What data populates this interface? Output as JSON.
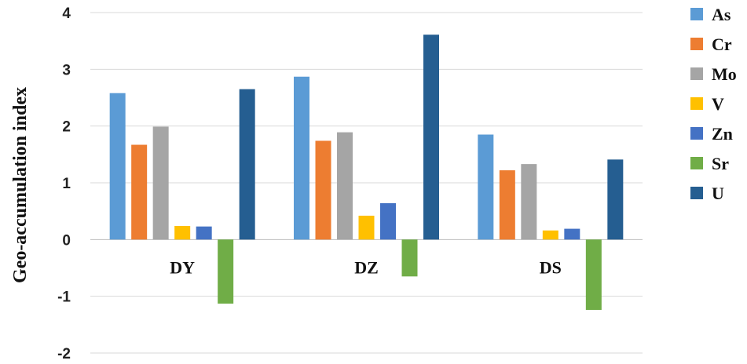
{
  "chart_data": {
    "type": "bar",
    "title": "",
    "xlabel": "",
    "ylabel": "Geo-accumulation index",
    "ylim": [
      -2,
      4
    ],
    "yticks": [
      -2,
      -1,
      0,
      1,
      2,
      3,
      4
    ],
    "grid": true,
    "legend_position": "right",
    "categories": [
      "DY",
      "DZ",
      "DS"
    ],
    "series": [
      {
        "name": "As",
        "color": "#5B9BD5",
        "values": [
          2.58,
          2.87,
          1.85
        ]
      },
      {
        "name": "Cr",
        "color": "#ED7D31",
        "values": [
          1.67,
          1.74,
          1.22
        ]
      },
      {
        "name": "Mo",
        "color": "#A5A5A5",
        "values": [
          1.99,
          1.89,
          1.33
        ]
      },
      {
        "name": "V",
        "color": "#FFC000",
        "values": [
          0.24,
          0.42,
          0.16
        ]
      },
      {
        "name": "Zn",
        "color": "#4472C4",
        "values": [
          0.23,
          0.64,
          0.19
        ]
      },
      {
        "name": "Sr",
        "color": "#70AD47",
        "values": [
          -1.13,
          -0.65,
          -1.24
        ]
      },
      {
        "name": "U",
        "color": "#255E91",
        "values": [
          2.65,
          3.61,
          1.41
        ]
      }
    ]
  }
}
